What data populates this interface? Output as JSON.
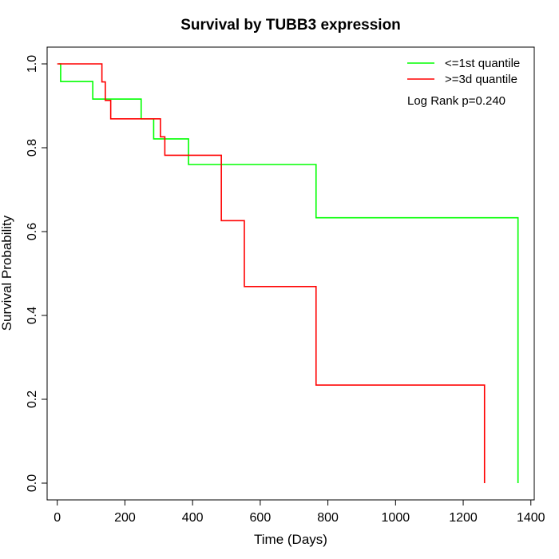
{
  "chart_data": {
    "type": "line",
    "title": "Survival by TUBB3 expression",
    "xlabel": "Time (Days)",
    "ylabel": "Survival Probability",
    "xlim": [
      -30,
      1410
    ],
    "ylim": [
      -0.04,
      1.04
    ],
    "xticks": [
      "0",
      "200",
      "400",
      "600",
      "800",
      "1000",
      "1200",
      "1400"
    ],
    "yticks": [
      "0.0",
      "0.2",
      "0.4",
      "0.6",
      "0.8",
      "1.0"
    ],
    "legend_position": "top-right",
    "annotation": "Log Rank p=0.240",
    "grid": false,
    "series": [
      {
        "name": "<=1st quantile",
        "color": "#00ff00",
        "step": true,
        "points": [
          [
            5,
            1.0
          ],
          [
            10,
            0.958
          ],
          [
            105,
            0.916
          ],
          [
            248,
            0.869
          ],
          [
            285,
            0.821
          ],
          [
            388,
            0.76
          ],
          [
            765,
            0.633
          ],
          [
            1362,
            0.0
          ]
        ]
      },
      {
        "name": ">=3d quantile",
        "color": "#ff0000",
        "step": true,
        "points": [
          [
            0,
            1.0
          ],
          [
            132,
            0.957
          ],
          [
            142,
            0.913
          ],
          [
            158,
            0.869
          ],
          [
            305,
            0.826
          ],
          [
            318,
            0.782
          ],
          [
            485,
            0.626
          ],
          [
            553,
            0.469
          ],
          [
            765,
            0.234
          ],
          [
            1263,
            0.0
          ]
        ]
      }
    ]
  }
}
